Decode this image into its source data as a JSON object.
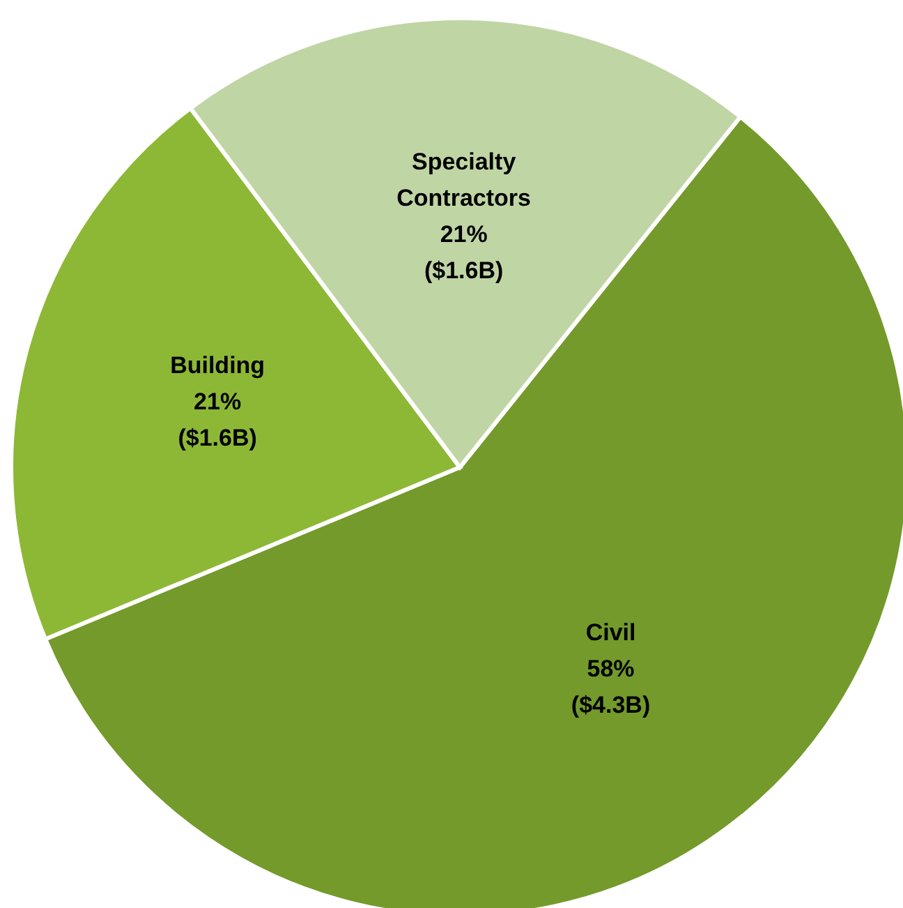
{
  "chart_data": {
    "type": "pie",
    "categories": [
      "Civil",
      "Building",
      "Specialty Contractors"
    ],
    "values": [
      58,
      21,
      21
    ],
    "colors": [
      "#739a2b",
      "#8db836",
      "#c0d5a4"
    ],
    "value_labels": [
      "58% ($4.3B)",
      "21% ($1.6B)",
      "21% ($1.6B)"
    ],
    "legend": false
  }
}
